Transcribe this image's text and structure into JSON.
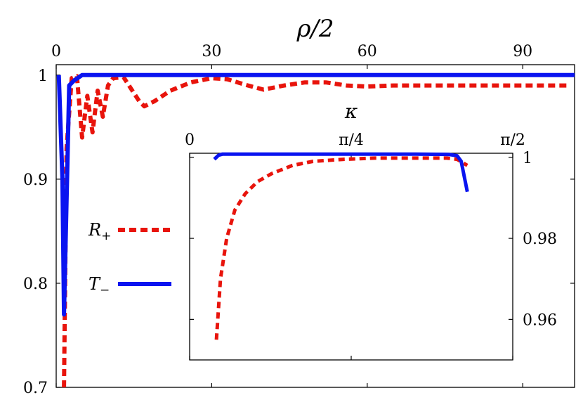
{
  "chart_data": [
    {
      "type": "line",
      "title": "",
      "xlabel": "ρ/2",
      "ylabel": "",
      "x_axis_position": "top",
      "xlim": [
        0,
        100
      ],
      "ylim": [
        0.7,
        1.01
      ],
      "xticks": [
        0,
        30,
        60,
        90
      ],
      "xtick_labels": [
        "0",
        "30",
        "60",
        "90"
      ],
      "yticks": [
        0.7,
        0.8,
        0.9,
        1
      ],
      "ytick_labels": [
        "0.7",
        "0.8",
        "0.9",
        "1"
      ],
      "grid": false,
      "legend": {
        "placement": "left",
        "entries": [
          "R+",
          "T−"
        ]
      },
      "series": [
        {
          "name": "R+",
          "color": "#e8140c",
          "style": "dashed",
          "points": [
            [
              1.5,
              0.7
            ],
            [
              2,
              0.93
            ],
            [
              3,
              0.997
            ],
            [
              4,
              0.999
            ],
            [
              5,
              0.94
            ],
            [
              6,
              0.98
            ],
            [
              7,
              0.945
            ],
            [
              8,
              0.985
            ],
            [
              9,
              0.96
            ],
            [
              10,
              0.99
            ],
            [
              11,
              0.997
            ],
            [
              13,
              0.998
            ],
            [
              16,
              0.975
            ],
            [
              17,
              0.97
            ],
            [
              19,
              0.975
            ],
            [
              22,
              0.985
            ],
            [
              26,
              0.993
            ],
            [
              30,
              0.997
            ],
            [
              33,
              0.996
            ],
            [
              37,
              0.99
            ],
            [
              40,
              0.986
            ],
            [
              44,
              0.99
            ],
            [
              48,
              0.993
            ],
            [
              52,
              0.993
            ],
            [
              56,
              0.99
            ],
            [
              60,
              0.989
            ],
            [
              65,
              0.99
            ],
            [
              70,
              0.99
            ],
            [
              75,
              0.99
            ],
            [
              80,
              0.99
            ],
            [
              85,
              0.99
            ],
            [
              90,
              0.99
            ],
            [
              95,
              0.99
            ],
            [
              99,
              0.99
            ]
          ]
        },
        {
          "name": "T−",
          "color": "#0a14f0",
          "style": "solid",
          "points": [
            [
              0.5,
              1
            ],
            [
              1.2,
              0.9
            ],
            [
              1.5,
              0.77
            ],
            [
              2,
              0.88
            ],
            [
              2.5,
              0.99
            ],
            [
              3.5,
              0.995
            ],
            [
              5,
              1
            ],
            [
              10,
              1
            ],
            [
              20,
              1
            ],
            [
              40,
              1
            ],
            [
              60,
              1
            ],
            [
              80,
              1
            ],
            [
              100,
              1
            ]
          ]
        }
      ]
    },
    {
      "type": "line",
      "title": "",
      "xlabel": "κ",
      "ylabel": "",
      "x_axis_position": "top",
      "y_axis_position": "right",
      "xlim": [
        0,
        1.5708
      ],
      "ylim": [
        0.95,
        1.001
      ],
      "xticks": [
        0,
        0.7854,
        1.5708
      ],
      "xtick_labels": [
        "0",
        "π/4",
        "π/2"
      ],
      "yticks": [
        0.96,
        0.98,
        1
      ],
      "ytick_labels": [
        "0.96",
        "0.98",
        "1"
      ],
      "grid": false,
      "series": [
        {
          "name": "R+",
          "color": "#e8140c",
          "style": "dashed",
          "points": [
            [
              0.13,
              0.955
            ],
            [
              0.15,
              0.97
            ],
            [
              0.18,
              0.98
            ],
            [
              0.22,
              0.987
            ],
            [
              0.27,
              0.991
            ],
            [
              0.33,
              0.994
            ],
            [
              0.4,
              0.996
            ],
            [
              0.5,
              0.998
            ],
            [
              0.6,
              0.999
            ],
            [
              0.75,
              0.9995
            ],
            [
              0.9,
              0.9998
            ],
            [
              1.1,
              0.9998
            ],
            [
              1.25,
              0.9998
            ],
            [
              1.3,
              0.9995
            ],
            [
              1.35,
              0.998
            ]
          ]
        },
        {
          "name": "T−",
          "color": "#0a14f0",
          "style": "solid",
          "points": [
            [
              0.12,
              0.9995
            ],
            [
              0.14,
              1.0005
            ],
            [
              0.16,
              1.0008
            ],
            [
              0.3,
              1.0008
            ],
            [
              0.5,
              1.0008
            ],
            [
              0.8,
              1.0008
            ],
            [
              1.1,
              1.0008
            ],
            [
              1.26,
              1.0007
            ],
            [
              1.3,
              1.0004
            ],
            [
              1.32,
              0.999
            ],
            [
              1.35,
              0.9915
            ]
          ]
        }
      ]
    }
  ]
}
